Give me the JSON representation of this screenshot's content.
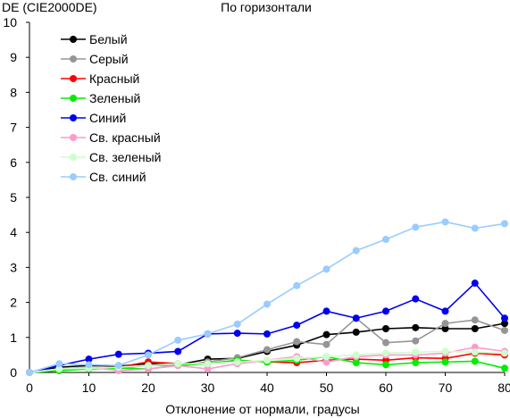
{
  "chart_data": {
    "type": "line",
    "title": "По горизонтали",
    "ylabel": "DE (CIE2000DE)",
    "xlabel": "Отклонение от нормали, градусы",
    "xlim": [
      0,
      80
    ],
    "ylim": [
      0,
      10
    ],
    "x_ticks": [
      0,
      10,
      20,
      30,
      40,
      50,
      60,
      70,
      80
    ],
    "y_ticks": [
      0,
      1,
      2,
      3,
      4,
      5,
      6,
      7,
      8,
      9,
      10
    ],
    "grid": false,
    "legend_position": "top-left",
    "x": [
      0,
      5,
      10,
      15,
      20,
      25,
      30,
      35,
      40,
      45,
      50,
      55,
      60,
      65,
      70,
      75,
      80
    ],
    "series": [
      {
        "name": "Белый",
        "color": "#000000",
        "values": [
          0,
          0.15,
          0.2,
          0.18,
          0.25,
          0.22,
          0.38,
          0.4,
          0.6,
          0.78,
          1.08,
          1.15,
          1.25,
          1.28,
          1.25,
          1.25,
          1.4
        ]
      },
      {
        "name": "Серый",
        "color": "#959595",
        "values": [
          0,
          0.1,
          0.15,
          0.12,
          0.2,
          0.2,
          0.3,
          0.42,
          0.65,
          0.88,
          0.8,
          1.55,
          0.85,
          0.9,
          1.4,
          1.5,
          1.2
        ]
      },
      {
        "name": "Красный",
        "color": "#ff0000",
        "values": [
          0,
          0.08,
          0.12,
          0.15,
          0.3,
          0.25,
          0.25,
          0.35,
          0.3,
          0.28,
          0.35,
          0.38,
          0.35,
          0.42,
          0.4,
          0.55,
          0.5
        ]
      },
      {
        "name": "Зеленый",
        "color": "#00ee00",
        "values": [
          0,
          0.05,
          0.1,
          0.12,
          0.1,
          0.2,
          0.25,
          0.35,
          0.3,
          0.35,
          0.45,
          0.28,
          0.22,
          0.28,
          0.3,
          0.32,
          0.12
        ]
      },
      {
        "name": "Синий",
        "color": "#0000ee",
        "values": [
          0,
          0.2,
          0.38,
          0.52,
          0.55,
          0.6,
          1.1,
          1.12,
          1.1,
          1.35,
          1.75,
          1.55,
          1.75,
          2.1,
          1.75,
          2.55,
          1.55
        ]
      },
      {
        "name": "Св. красный",
        "color": "#ff99cc",
        "values": [
          0,
          0.1,
          0.15,
          0.05,
          0.1,
          0.2,
          0.1,
          0.25,
          0.35,
          0.45,
          0.3,
          0.45,
          0.5,
          0.5,
          0.55,
          0.72,
          0.6
        ]
      },
      {
        "name": "Св. зеленый",
        "color": "#ccffcc",
        "values": [
          0,
          0.1,
          0.12,
          0.15,
          0.2,
          0.25,
          0.25,
          0.3,
          0.35,
          0.4,
          0.45,
          0.5,
          0.55,
          0.58,
          0.6,
          0.58,
          0.55
        ]
      },
      {
        "name": "Св. синий",
        "color": "#99ccff",
        "values": [
          0,
          0.25,
          0.22,
          0.2,
          0.5,
          0.92,
          1.1,
          1.38,
          1.95,
          2.48,
          2.95,
          3.48,
          3.8,
          4.15,
          4.3,
          4.12,
          4.25
        ]
      }
    ]
  }
}
